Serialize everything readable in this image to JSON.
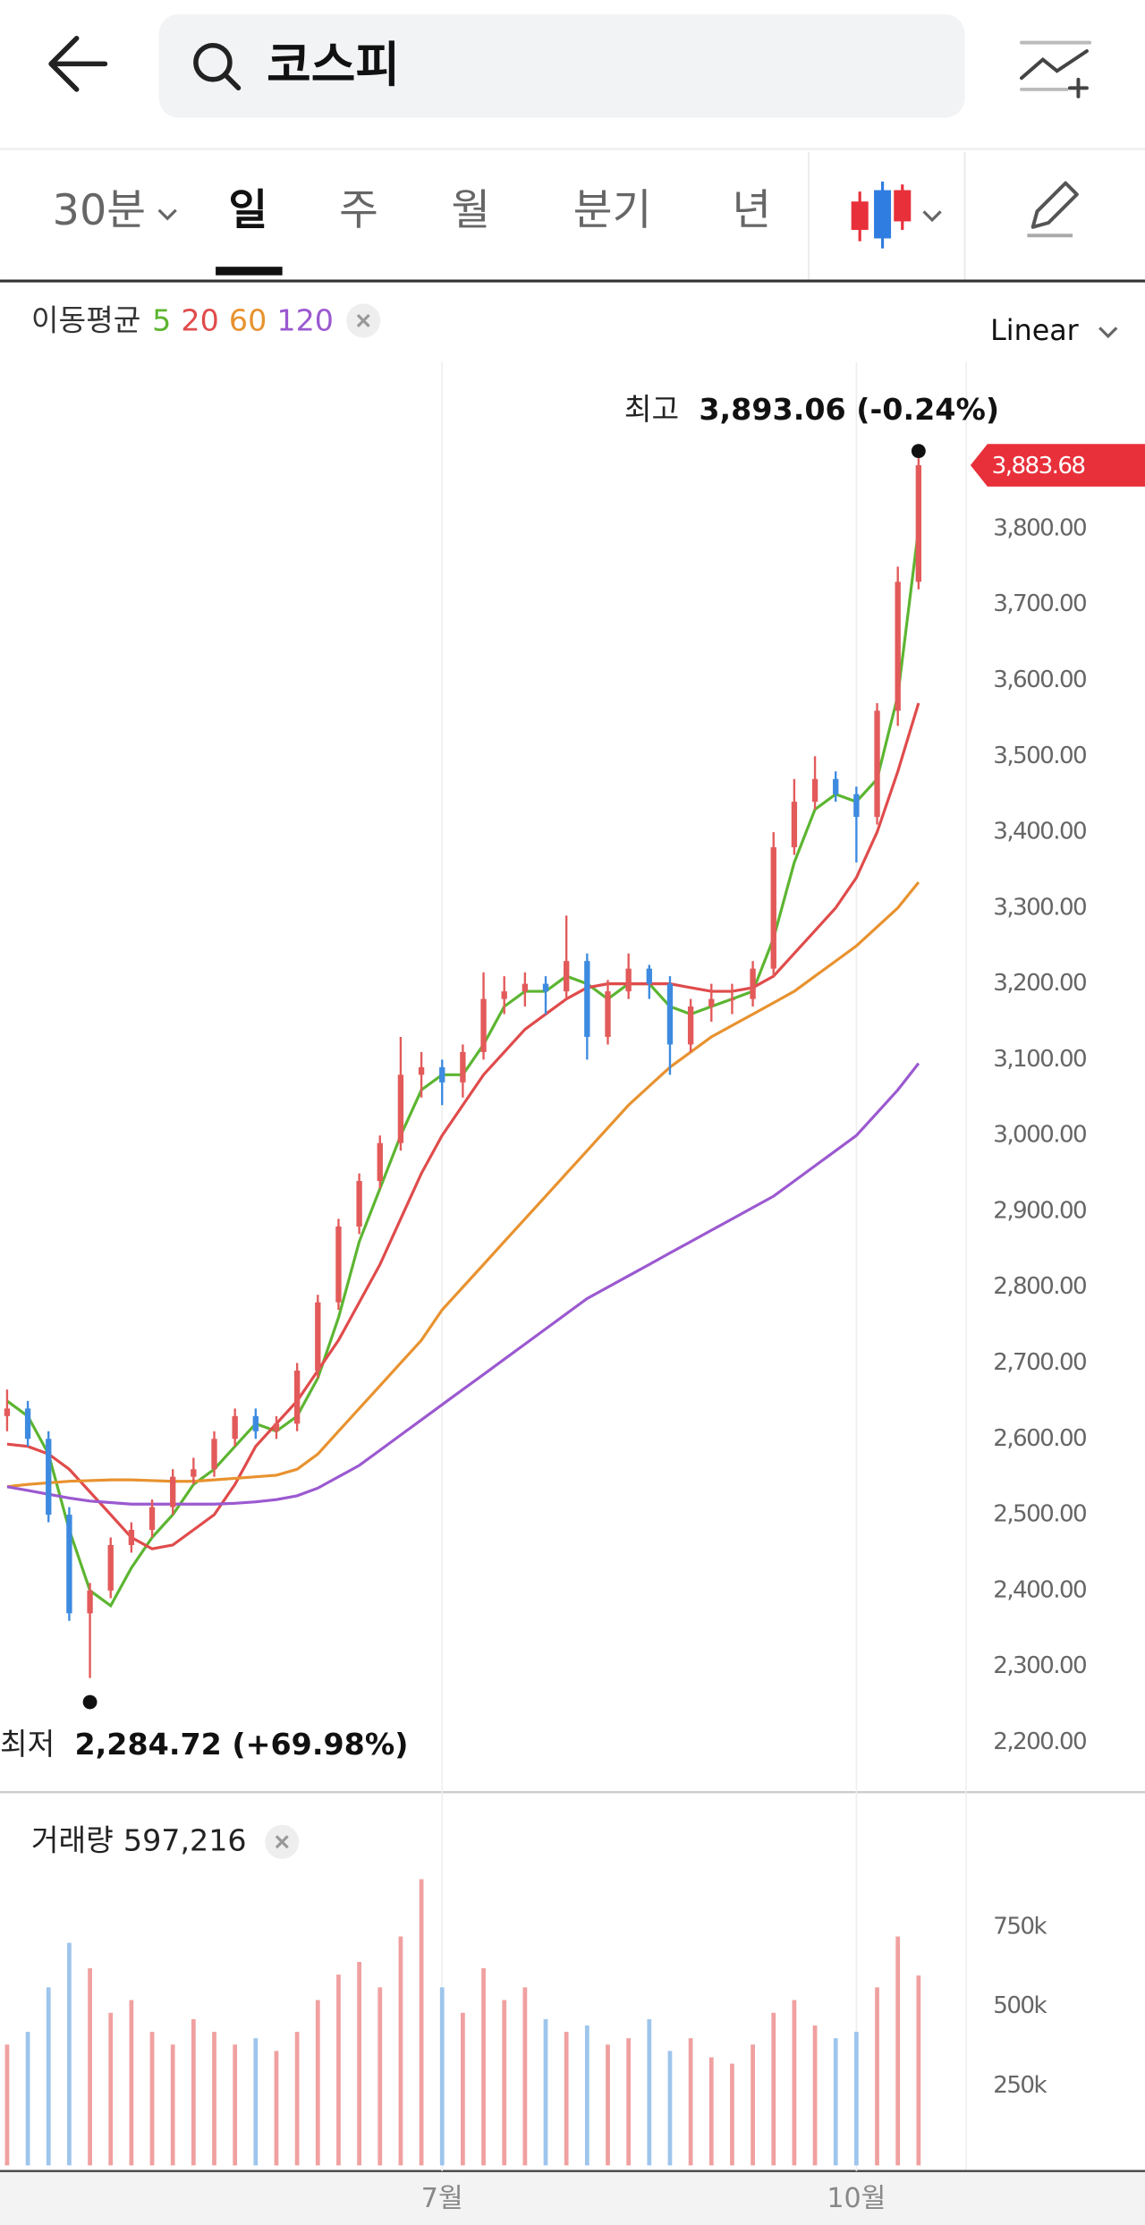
{
  "header": {
    "search": "코스피"
  },
  "tabs": [
    "30분",
    "일",
    "주",
    "월",
    "분기",
    "년"
  ],
  "scale_menu": "Linear",
  "chart_data": {
    "type": "candlestick",
    "categories": [
      null,
      null,
      null,
      null,
      null,
      null,
      null,
      null,
      null,
      null,
      null,
      null,
      null,
      null,
      null,
      null,
      null,
      null,
      null,
      null,
      null,
      "7월",
      null,
      null,
      null,
      null,
      null,
      null,
      null,
      null,
      null,
      null,
      null,
      null,
      null,
      null,
      null,
      null,
      null,
      null,
      null,
      "10월",
      null,
      null,
      null
    ],
    "open": [
      2630,
      2640,
      2600,
      2500,
      2370,
      2400,
      2460,
      2480,
      2510,
      2550,
      2560,
      2600,
      2630,
      2610,
      2620,
      2690,
      2780,
      2880,
      2940,
      2990,
      3080,
      3090,
      3070,
      3110,
      3180,
      3190,
      3200,
      3190,
      3230,
      3130,
      3190,
      3220,
      3200,
      3120,
      3170,
      3180,
      3180,
      3220,
      3380,
      3440,
      3470,
      3450,
      3420,
      3560,
      3730
    ],
    "high": [
      2665,
      2650,
      2610,
      2510,
      2410,
      2470,
      2490,
      2520,
      2560,
      2575,
      2610,
      2640,
      2640,
      2630,
      2700,
      2790,
      2890,
      2950,
      3000,
      3130,
      3110,
      3100,
      3120,
      3215,
      3210,
      3215,
      3210,
      3290,
      3240,
      3205,
      3240,
      3225,
      3210,
      3180,
      3200,
      3200,
      3230,
      3400,
      3470,
      3500,
      3480,
      3460,
      3570,
      3750,
      3893.06
    ],
    "low": [
      2610,
      2590,
      2490,
      2360,
      2284.72,
      2390,
      2450,
      2470,
      2500,
      2540,
      2550,
      2590,
      2600,
      2600,
      2610,
      2680,
      2770,
      2870,
      2930,
      2980,
      3050,
      3040,
      3050,
      3100,
      3160,
      3170,
      3160,
      3180,
      3100,
      3120,
      3180,
      3180,
      3080,
      3110,
      3150,
      3160,
      3170,
      3210,
      3370,
      3430,
      3440,
      3360,
      3410,
      3540,
      3720
    ],
    "close": [
      2640,
      2600,
      2500,
      2370,
      2400,
      2460,
      2480,
      2510,
      2550,
      2560,
      2600,
      2630,
      2610,
      2620,
      2690,
      2780,
      2880,
      2940,
      2990,
      3080,
      3090,
      3070,
      3110,
      3180,
      3190,
      3200,
      3190,
      3230,
      3130,
      3190,
      3220,
      3200,
      3120,
      3170,
      3180,
      3180,
      3220,
      3380,
      3440,
      3470,
      3450,
      3420,
      3560,
      3730,
      3883.68
    ],
    "up_color": "#e35a5a",
    "down_color": "#3d8be0",
    "ylim": [
      2136,
      4020
    ],
    "yticks": [
      {
        "value": 2200,
        "label": "2,200.00"
      },
      {
        "value": 2300,
        "label": "2,300.00"
      },
      {
        "value": 2400,
        "label": "2,400.00"
      },
      {
        "value": 2500,
        "label": "2,500.00"
      },
      {
        "value": 2600,
        "label": "2,600.00"
      },
      {
        "value": 2700,
        "label": "2,700.00"
      },
      {
        "value": 2800,
        "label": "2,800.00"
      },
      {
        "value": 2900,
        "label": "2,900.00"
      },
      {
        "value": 3000,
        "label": "3,000.00"
      },
      {
        "value": 3100,
        "label": "3,100.00"
      },
      {
        "value": 3200,
        "label": "3,200.00"
      },
      {
        "value": 3300,
        "label": "3,300.00"
      },
      {
        "value": 3400,
        "label": "3,400.00"
      },
      {
        "value": 3500,
        "label": "3,500.00"
      },
      {
        "value": 3600,
        "label": "3,600.00"
      },
      {
        "value": 3700,
        "label": "3,700.00"
      },
      {
        "value": 3800,
        "label": "3,800.00"
      }
    ],
    "current": {
      "value": 3883.68,
      "label": "3,883.68"
    },
    "annotations": [
      {
        "prefix": "최고",
        "text": "3,893.06 (-0.24%)"
      },
      {
        "prefix": "최저",
        "text": "2,284.72 (+69.98%)"
      }
    ],
    "moving_averages": {
      "title": "이동평균",
      "series": [
        {
          "name": "5",
          "color": "#5cb531",
          "values": [
            2650,
            2630,
            2580,
            2480,
            2400,
            2380,
            2430,
            2470,
            2500,
            2540,
            2560,
            2590,
            2620,
            2610,
            2630,
            2680,
            2760,
            2860,
            2930,
            3000,
            3060,
            3080,
            3080,
            3120,
            3170,
            3190,
            3190,
            3210,
            3200,
            3180,
            3200,
            3200,
            3170,
            3160,
            3170,
            3180,
            3190,
            3260,
            3360,
            3430,
            3450,
            3440,
            3470,
            3580,
            3800
          ]
        },
        {
          "name": "20",
          "color": "#e04b4b",
          "values": [
            2593,
            2590,
            2580,
            2560,
            2530,
            2500,
            2470,
            2455,
            2460,
            2480,
            2500,
            2540,
            2590,
            2620,
            2650,
            2690,
            2730,
            2780,
            2830,
            2890,
            2950,
            3000,
            3040,
            3080,
            3110,
            3140,
            3160,
            3180,
            3195,
            3200,
            3200,
            3200,
            3200,
            3195,
            3190,
            3190,
            3195,
            3210,
            3240,
            3270,
            3300,
            3340,
            3400,
            3480,
            3570
          ]
        },
        {
          "name": "60",
          "color": "#e8922f",
          "values": [
            2537,
            2540,
            2542,
            2544,
            2545,
            2546,
            2546,
            2545,
            2544,
            2544,
            2546,
            2548,
            2550,
            2552,
            2560,
            2580,
            2610,
            2640,
            2670,
            2700,
            2730,
            2770,
            2800,
            2830,
            2860,
            2890,
            2920,
            2950,
            2980,
            3010,
            3040,
            3065,
            3090,
            3110,
            3130,
            3145,
            3160,
            3175,
            3190,
            3210,
            3230,
            3250,
            3275,
            3300,
            3334
          ]
        },
        {
          "name": "120",
          "color": "#9b59d0",
          "values": [
            2537,
            2532,
            2527,
            2522,
            2518,
            2516,
            2514,
            2514,
            2514,
            2514,
            2514,
            2515,
            2517,
            2520,
            2525,
            2535,
            2550,
            2565,
            2585,
            2605,
            2625,
            2645,
            2665,
            2685,
            2705,
            2725,
            2745,
            2765,
            2785,
            2800,
            2815,
            2830,
            2845,
            2860,
            2875,
            2890,
            2905,
            2920,
            2940,
            2960,
            2980,
            3000,
            3030,
            3060,
            3095
          ]
        }
      ]
    },
    "volume": {
      "title": "거래량",
      "label": "597,216",
      "values": [
        380000,
        420000,
        560000,
        700000,
        620000,
        480000,
        520000,
        420000,
        380000,
        460000,
        420000,
        380000,
        400000,
        360000,
        420000,
        520000,
        600000,
        640000,
        560000,
        720000,
        900000,
        560000,
        480000,
        620000,
        520000,
        560000,
        460000,
        420000,
        440000,
        380000,
        400000,
        460000,
        360000,
        400000,
        340000,
        320000,
        380000,
        480000,
        520000,
        440000,
        400000,
        420000,
        560000,
        720000,
        597216
      ],
      "up_color": "#f0a0a0",
      "down_color": "#9ec5ec",
      "ylim": [
        0,
        964000
      ],
      "yticks": [
        {
          "value": 250000,
          "label": "250k"
        },
        {
          "value": 500000,
          "label": "500k"
        },
        {
          "value": 750000,
          "label": "750k"
        }
      ]
    }
  }
}
